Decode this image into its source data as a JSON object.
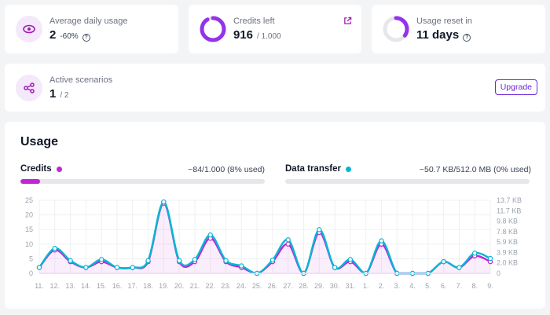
{
  "cards": {
    "avg_usage": {
      "label": "Average daily usage",
      "value": "2",
      "delta": "-60%"
    },
    "credits_left": {
      "label": "Credits left",
      "value": "916",
      "total": "/ 1.000",
      "fraction_left": 0.916
    },
    "usage_reset": {
      "label": "Usage reset in",
      "value": "11 days",
      "fraction": 0.35
    },
    "active_scenarios": {
      "label": "Active scenarios",
      "value": "1",
      "total": "/ 2",
      "button": "Upgrade"
    }
  },
  "usage": {
    "title": "Usage",
    "credits": {
      "label": "Credits",
      "value": "~84/1.000 (8% used)",
      "fraction": 0.08,
      "color": "#c026d3"
    },
    "data_transfer": {
      "label": "Data transfer",
      "value": "~50.7 KB/512.0 MB (0% used)",
      "fraction": 0.0,
      "color": "#06b6d4"
    }
  },
  "chart_data": {
    "type": "line",
    "categories": [
      "11.",
      "12.",
      "13.",
      "14.",
      "15.",
      "16.",
      "17.",
      "18.",
      "19.",
      "20.",
      "21.",
      "22.",
      "23.",
      "24.",
      "25.",
      "26.",
      "27.",
      "28.",
      "29.",
      "30.",
      "31.",
      "1.",
      "2.",
      "3.",
      "4.",
      "5.",
      "6.",
      "7.",
      "8.",
      "9."
    ],
    "y_left_ticks": [
      "0",
      "5",
      "10",
      "15",
      "20",
      "25"
    ],
    "y_right_ticks": [
      "0",
      "2.0 KB",
      "3.9 KB",
      "5.9 KB",
      "7.8 KB",
      "9.8 KB",
      "11.7 KB",
      "13.7 KB"
    ],
    "ylim_left": [
      0,
      25
    ],
    "ylim_right": [
      0,
      13.7
    ],
    "series": [
      {
        "values": [
          2,
          8,
          4,
          2,
          4,
          2,
          2,
          4,
          24,
          4,
          4,
          12,
          4,
          2,
          0,
          4,
          10,
          0,
          14,
          2,
          4,
          0,
          10,
          0,
          0,
          0,
          4,
          2,
          6,
          4
        ],
        "color": "#c026d3",
        "axis": "left"
      },
      {
        "values": [
          1.1,
          4.7,
          2.4,
          1.1,
          2.6,
          1.1,
          1.1,
          2.4,
          13.4,
          2.4,
          2.6,
          7.2,
          2.4,
          1.4,
          0,
          2.5,
          6.3,
          0,
          8.2,
          1.1,
          2.6,
          0,
          6.1,
          0,
          0,
          0,
          2.2,
          1.1,
          3.8,
          2.8
        ],
        "color": "#06b6d4",
        "axis": "right"
      }
    ]
  }
}
